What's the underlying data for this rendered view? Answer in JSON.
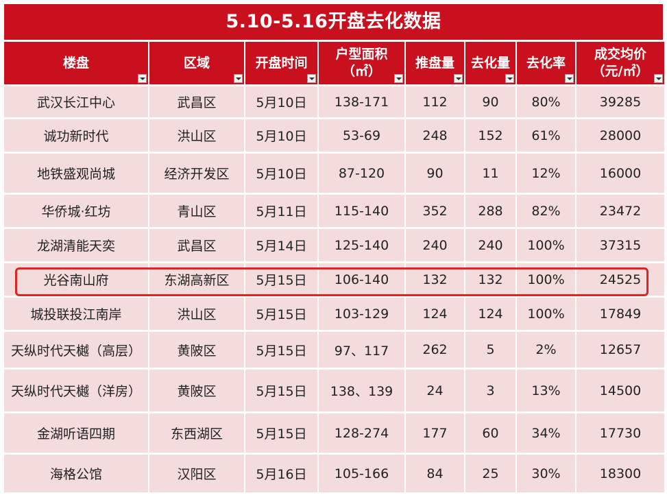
{
  "title": "5.10-5.16开盘去化数据",
  "headers": [
    {
      "l1": "楼盘",
      "l2": ""
    },
    {
      "l1": "区域",
      "l2": ""
    },
    {
      "l1": "开盘时间",
      "l2": ""
    },
    {
      "l1": "户型面积",
      "l2": "（㎡）"
    },
    {
      "l1": "推盘量",
      "l2": ""
    },
    {
      "l1": "去化量",
      "l2": ""
    },
    {
      "l1": "去化率",
      "l2": ""
    },
    {
      "l1": "成交均价",
      "l2": "（元/㎡）"
    }
  ],
  "rows": [
    [
      "武汉长江中心",
      "武昌区",
      "5月10日",
      "138-171",
      "112",
      "90",
      "80%",
      "39285"
    ],
    [
      "诚功新时代",
      "洪山区",
      "5月10日",
      "53-69",
      "248",
      "152",
      "61%",
      "28000"
    ],
    [
      "地铁盛观尚城",
      "经济开发区",
      "5月10日",
      "87-120",
      "90",
      "11",
      "12%",
      "16000"
    ],
    [
      "华侨城·红坊",
      "青山区",
      "5月11日",
      "115-140",
      "352",
      "288",
      "82%",
      "23472"
    ],
    [
      "龙湖清能天奕",
      "武昌区",
      "5月14日",
      "125-140",
      "240",
      "240",
      "100%",
      "37315"
    ],
    [
      "光谷南山府",
      "东湖高新区",
      "5月15日",
      "106-140",
      "132",
      "132",
      "100%",
      "24525"
    ],
    [
      "城投联投江南岸",
      "洪山区",
      "5月15日",
      "103-129",
      "124",
      "124",
      "100%",
      "17849"
    ],
    [
      "天纵时代天樾（高层）",
      "黄陂区",
      "5月15日",
      "97、117",
      "262",
      "5",
      "2%",
      "12657"
    ],
    [
      "天纵时代天樾（洋房）",
      "黄陂区",
      "5月15日",
      "138、139",
      "24",
      "3",
      "13%",
      "14500"
    ],
    [
      "金湖听语四期",
      "东西湖区",
      "5月15日",
      "128-274",
      "177",
      "60",
      "34%",
      "17730"
    ],
    [
      "海格公馆",
      "汉阳区",
      "5月16日",
      "105-166",
      "84",
      "25",
      "30%",
      "18300"
    ]
  ],
  "highlighted_row": 5,
  "colors": {
    "header": "#c8101e",
    "cell": "#f4dcdc",
    "highlight": "#e02424"
  }
}
